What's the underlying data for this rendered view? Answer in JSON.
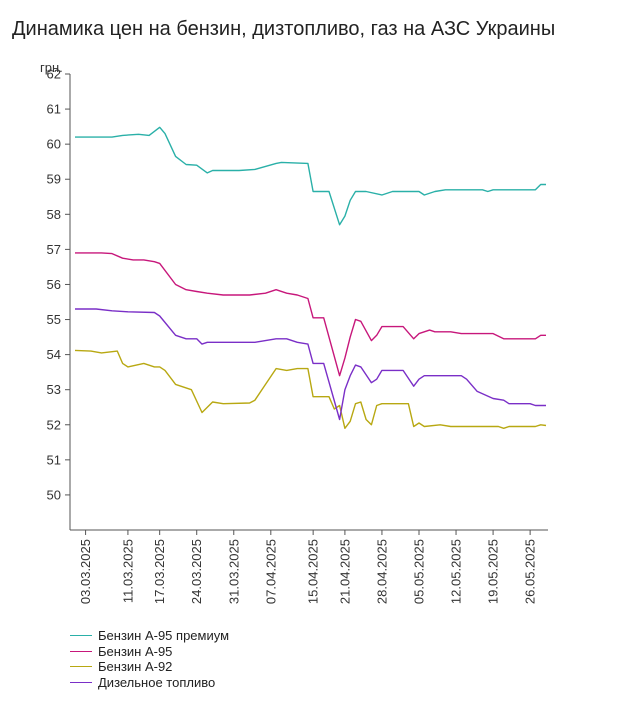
{
  "chart_data": {
    "type": "line",
    "title": "Динамика цен на бензин, дизтопливо, газ на АЗС Украины",
    "ylabel": "грн.",
    "ylim": [
      49,
      62
    ],
    "yticks": [
      50,
      51,
      52,
      53,
      54,
      55,
      56,
      57,
      58,
      59,
      60,
      61,
      62
    ],
    "xrange": [
      "2025-03-01",
      "2025-05-29"
    ],
    "xticks": [
      "03.03.2025",
      "11.03.2025",
      "17.03.2025",
      "24.03.2025",
      "31.03.2025",
      "07.04.2025",
      "15.04.2025",
      "21.04.2025",
      "28.04.2025",
      "05.05.2025",
      "12.05.2025",
      "19.05.2025",
      "26.05.2025"
    ],
    "grid": false,
    "legend_position": "bottom-left",
    "series": [
      {
        "name": "Бензин А-95 премиум",
        "color": "#2ab0a8",
        "points": [
          [
            "2025-03-01",
            60.2
          ],
          [
            "2025-03-08",
            60.2
          ],
          [
            "2025-03-10",
            60.25
          ],
          [
            "2025-03-13",
            60.28
          ],
          [
            "2025-03-15",
            60.25
          ],
          [
            "2025-03-17",
            60.48
          ],
          [
            "2025-03-18",
            60.3
          ],
          [
            "2025-03-20",
            59.65
          ],
          [
            "2025-03-22",
            59.42
          ],
          [
            "2025-03-24",
            59.4
          ],
          [
            "2025-03-26",
            59.18
          ],
          [
            "2025-03-27",
            59.25
          ],
          [
            "2025-04-01",
            59.25
          ],
          [
            "2025-04-04",
            59.28
          ],
          [
            "2025-04-08",
            59.45
          ],
          [
            "2025-04-09",
            59.48
          ],
          [
            "2025-04-14",
            59.45
          ],
          [
            "2025-04-15",
            58.65
          ],
          [
            "2025-04-18",
            58.65
          ],
          [
            "2025-04-20",
            57.7
          ],
          [
            "2025-04-21",
            57.95
          ],
          [
            "2025-04-22",
            58.4
          ],
          [
            "2025-04-23",
            58.65
          ],
          [
            "2025-04-25",
            58.65
          ],
          [
            "2025-04-28",
            58.55
          ],
          [
            "2025-04-30",
            58.65
          ],
          [
            "2025-05-05",
            58.65
          ],
          [
            "2025-05-06",
            58.55
          ],
          [
            "2025-05-08",
            58.65
          ],
          [
            "2025-05-10",
            58.7
          ],
          [
            "2025-05-17",
            58.7
          ],
          [
            "2025-05-18",
            58.65
          ],
          [
            "2025-05-19",
            58.7
          ],
          [
            "2025-05-27",
            58.7
          ],
          [
            "2025-05-28",
            58.85
          ],
          [
            "2025-05-29",
            58.85
          ]
        ]
      },
      {
        "name": "Бензин А-95",
        "color": "#c7177b",
        "points": [
          [
            "2025-03-01",
            56.9
          ],
          [
            "2025-03-06",
            56.9
          ],
          [
            "2025-03-08",
            56.88
          ],
          [
            "2025-03-10",
            56.75
          ],
          [
            "2025-03-12",
            56.7
          ],
          [
            "2025-03-14",
            56.7
          ],
          [
            "2025-03-16",
            56.65
          ],
          [
            "2025-03-17",
            56.6
          ],
          [
            "2025-03-20",
            56.0
          ],
          [
            "2025-03-22",
            55.85
          ],
          [
            "2025-03-24",
            55.8
          ],
          [
            "2025-03-26",
            55.75
          ],
          [
            "2025-03-29",
            55.7
          ],
          [
            "2025-04-03",
            55.7
          ],
          [
            "2025-04-06",
            55.75
          ],
          [
            "2025-04-08",
            55.85
          ],
          [
            "2025-04-10",
            55.75
          ],
          [
            "2025-04-12",
            55.7
          ],
          [
            "2025-04-14",
            55.6
          ],
          [
            "2025-04-15",
            55.05
          ],
          [
            "2025-04-17",
            55.05
          ],
          [
            "2025-04-20",
            53.4
          ],
          [
            "2025-04-21",
            53.9
          ],
          [
            "2025-04-22",
            54.5
          ],
          [
            "2025-04-23",
            55.0
          ],
          [
            "2025-04-24",
            54.95
          ],
          [
            "2025-04-26",
            54.4
          ],
          [
            "2025-04-27",
            54.55
          ],
          [
            "2025-04-28",
            54.8
          ],
          [
            "2025-05-02",
            54.8
          ],
          [
            "2025-05-04",
            54.45
          ],
          [
            "2025-05-05",
            54.6
          ],
          [
            "2025-05-07",
            54.7
          ],
          [
            "2025-05-08",
            54.65
          ],
          [
            "2025-05-11",
            54.65
          ],
          [
            "2025-05-13",
            54.6
          ],
          [
            "2025-05-17",
            54.6
          ],
          [
            "2025-05-19",
            54.6
          ],
          [
            "2025-05-21",
            54.45
          ],
          [
            "2025-05-27",
            54.45
          ],
          [
            "2025-05-28",
            54.55
          ],
          [
            "2025-05-29",
            54.55
          ]
        ]
      },
      {
        "name": "Бензин А-92",
        "color": "#b8a812",
        "points": [
          [
            "2025-03-01",
            54.12
          ],
          [
            "2025-03-04",
            54.1
          ],
          [
            "2025-03-06",
            54.05
          ],
          [
            "2025-03-09",
            54.1
          ],
          [
            "2025-03-10",
            53.75
          ],
          [
            "2025-03-11",
            53.65
          ],
          [
            "2025-03-14",
            53.75
          ],
          [
            "2025-03-16",
            53.65
          ],
          [
            "2025-03-17",
            53.65
          ],
          [
            "2025-03-18",
            53.55
          ],
          [
            "2025-03-20",
            53.15
          ],
          [
            "2025-03-23",
            53.0
          ],
          [
            "2025-03-25",
            52.35
          ],
          [
            "2025-03-27",
            52.65
          ],
          [
            "2025-03-29",
            52.6
          ],
          [
            "2025-04-03",
            52.62
          ],
          [
            "2025-04-04",
            52.7
          ],
          [
            "2025-04-06",
            53.15
          ],
          [
            "2025-04-08",
            53.6
          ],
          [
            "2025-04-10",
            53.55
          ],
          [
            "2025-04-12",
            53.6
          ],
          [
            "2025-04-14",
            53.6
          ],
          [
            "2025-04-15",
            52.8
          ],
          [
            "2025-04-18",
            52.8
          ],
          [
            "2025-04-19",
            52.45
          ],
          [
            "2025-04-20",
            52.55
          ],
          [
            "2025-04-21",
            51.9
          ],
          [
            "2025-04-22",
            52.1
          ],
          [
            "2025-04-23",
            52.6
          ],
          [
            "2025-04-24",
            52.65
          ],
          [
            "2025-04-25",
            52.15
          ],
          [
            "2025-04-26",
            52.0
          ],
          [
            "2025-04-27",
            52.55
          ],
          [
            "2025-04-28",
            52.6
          ],
          [
            "2025-05-03",
            52.6
          ],
          [
            "2025-05-04",
            51.95
          ],
          [
            "2025-05-05",
            52.05
          ],
          [
            "2025-05-06",
            51.95
          ],
          [
            "2025-05-09",
            52.0
          ],
          [
            "2025-05-11",
            51.95
          ],
          [
            "2025-05-20",
            51.95
          ],
          [
            "2025-05-21",
            51.9
          ],
          [
            "2025-05-22",
            51.95
          ],
          [
            "2025-05-27",
            51.95
          ],
          [
            "2025-05-28",
            52.0
          ],
          [
            "2025-05-29",
            51.98
          ]
        ]
      },
      {
        "name": "Дизельное топливо",
        "color": "#7a2fc7",
        "points": [
          [
            "2025-03-01",
            55.3
          ],
          [
            "2025-03-05",
            55.3
          ],
          [
            "2025-03-08",
            55.25
          ],
          [
            "2025-03-11",
            55.22
          ],
          [
            "2025-03-16",
            55.2
          ],
          [
            "2025-03-17",
            55.1
          ],
          [
            "2025-03-20",
            54.55
          ],
          [
            "2025-03-22",
            54.45
          ],
          [
            "2025-03-24",
            54.45
          ],
          [
            "2025-03-25",
            54.3
          ],
          [
            "2025-03-26",
            54.35
          ],
          [
            "2025-04-04",
            54.35
          ],
          [
            "2025-04-06",
            54.4
          ],
          [
            "2025-04-08",
            54.45
          ],
          [
            "2025-04-10",
            54.45
          ],
          [
            "2025-04-12",
            54.35
          ],
          [
            "2025-04-14",
            54.3
          ],
          [
            "2025-04-15",
            53.75
          ],
          [
            "2025-04-17",
            53.75
          ],
          [
            "2025-04-20",
            52.15
          ],
          [
            "2025-04-21",
            53.0
          ],
          [
            "2025-04-22",
            53.4
          ],
          [
            "2025-04-23",
            53.7
          ],
          [
            "2025-04-24",
            53.65
          ],
          [
            "2025-04-26",
            53.2
          ],
          [
            "2025-04-27",
            53.3
          ],
          [
            "2025-04-28",
            53.55
          ],
          [
            "2025-05-02",
            53.55
          ],
          [
            "2025-05-04",
            53.1
          ],
          [
            "2025-05-05",
            53.3
          ],
          [
            "2025-05-06",
            53.4
          ],
          [
            "2025-05-13",
            53.4
          ],
          [
            "2025-05-14",
            53.3
          ],
          [
            "2025-05-16",
            52.95
          ],
          [
            "2025-05-19",
            52.75
          ],
          [
            "2025-05-21",
            52.7
          ],
          [
            "2025-05-22",
            52.6
          ],
          [
            "2025-05-26",
            52.6
          ],
          [
            "2025-05-27",
            52.55
          ],
          [
            "2025-05-29",
            52.55
          ]
        ]
      }
    ]
  }
}
